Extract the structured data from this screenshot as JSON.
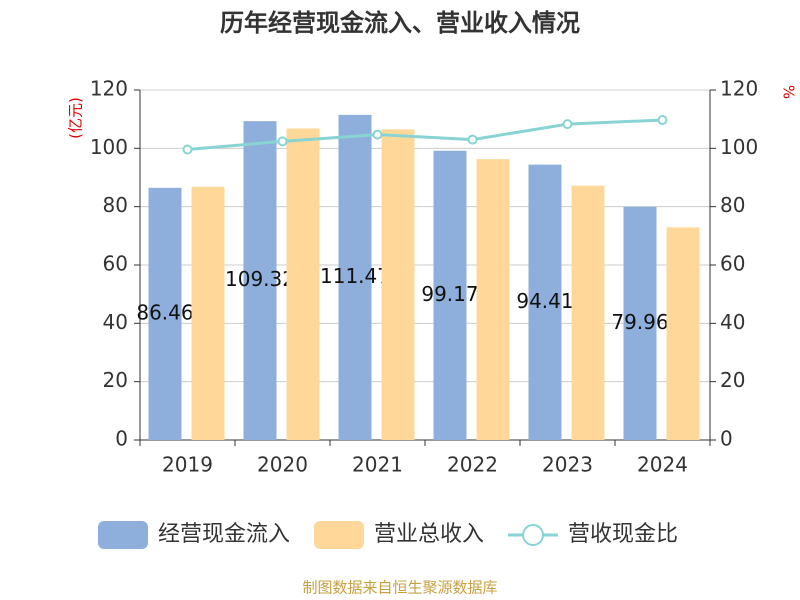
{
  "chart_data": {
    "type": "bar-line",
    "title": "历年经营现金流入、营业收入情况",
    "ylabel": "(亿元)",
    "y2label": "%",
    "source": "制图数据来自恒生聚源数据库",
    "categories": [
      "2019",
      "2020",
      "2021",
      "2022",
      "2023",
      "2024"
    ],
    "series": [
      {
        "name": "经营现金流入",
        "type": "bar",
        "color": "#8eaedb",
        "values": [
          86.46,
          109.32,
          111.47,
          99.17,
          94.41,
          79.96
        ],
        "show_labels": true
      },
      {
        "name": "营业总收入",
        "type": "bar",
        "color": "#ffd899",
        "values": [
          86.8,
          106.8,
          106.5,
          96.3,
          87.2,
          72.9
        ]
      },
      {
        "name": "营收现金比",
        "type": "line",
        "axis": "y2",
        "color": "#88d4d4",
        "values": [
          99.6,
          102.4,
          104.7,
          103.0,
          108.3,
          109.7
        ]
      }
    ],
    "ylim": [
      0,
      120
    ],
    "yticks": [
      0,
      20,
      40,
      60,
      80,
      100,
      120
    ],
    "y2lim": [
      0,
      120
    ],
    "y2ticks": [
      0,
      20,
      40,
      60,
      80,
      100,
      120
    ],
    "grid": true
  }
}
